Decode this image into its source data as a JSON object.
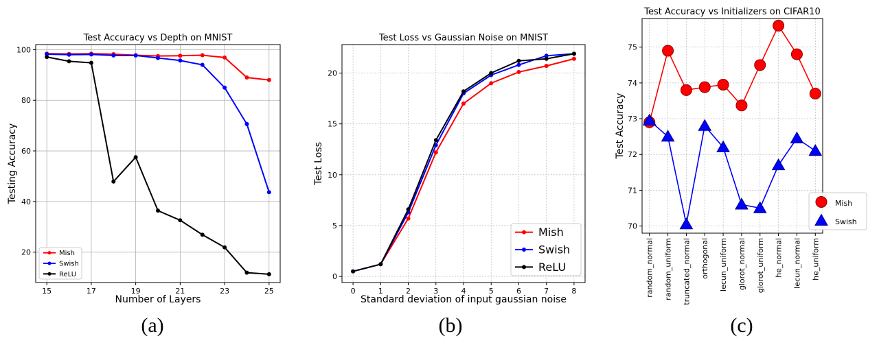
{
  "captions": [
    "(a)",
    "(b)",
    "(c)"
  ],
  "chart_data": [
    {
      "type": "line",
      "title": "Test Accuracy vs Depth on MNIST",
      "xlabel": "Number of Layers",
      "ylabel": "Testing Accuracy",
      "x": [
        15,
        16,
        17,
        18,
        19,
        20,
        21,
        22,
        23,
        24,
        25
      ],
      "xticks": [
        "15",
        "17",
        "19",
        "21",
        "23",
        "25"
      ],
      "yticks": [
        "20",
        "40",
        "60",
        "80",
        "100"
      ],
      "xlim": [
        14.5,
        25.5
      ],
      "ylim": [
        8,
        102
      ],
      "grid": true,
      "legend_position": "lower-left",
      "series": [
        {
          "name": "Mish",
          "color": "#ff0000",
          "values": [
            98.4,
            98.3,
            98.4,
            98.2,
            97.8,
            97.5,
            97.6,
            97.8,
            96.9,
            89.0,
            88.0
          ]
        },
        {
          "name": "Swish",
          "color": "#0000ff",
          "values": [
            98.2,
            98.0,
            98.1,
            97.7,
            97.7,
            96.7,
            95.7,
            94.0,
            85.0,
            70.6,
            43.7
          ]
        },
        {
          "name": "ReLU",
          "color": "#000000",
          "values": [
            97.1,
            95.4,
            94.8,
            47.9,
            57.5,
            36.4,
            32.6,
            26.9,
            21.9,
            11.9,
            11.3
          ]
        }
      ]
    },
    {
      "type": "line",
      "title": "Test Loss vs Gaussian Noise on MNIST",
      "xlabel": "Standard deviation of input gaussian noise",
      "ylabel": "Test Loss",
      "x": [
        0,
        1,
        2,
        3,
        4,
        5,
        6,
        7,
        8
      ],
      "xticks": [
        "0",
        "1",
        "2",
        "3",
        "4",
        "5",
        "6",
        "7",
        "8"
      ],
      "yticks": [
        "0",
        "5",
        "10",
        "15",
        "20"
      ],
      "xlim": [
        -0.4,
        8.4
      ],
      "ylim": [
        -0.6,
        22.8
      ],
      "grid": true,
      "legend_position": "lower-right",
      "series": [
        {
          "name": "Mish",
          "color": "#ff0000",
          "values": [
            0.5,
            1.2,
            5.7,
            12.2,
            17.0,
            19.0,
            20.1,
            20.7,
            21.4
          ]
        },
        {
          "name": "Swish",
          "color": "#0000ff",
          "values": [
            0.5,
            1.2,
            6.3,
            12.9,
            18.0,
            19.8,
            20.8,
            21.7,
            21.9
          ]
        },
        {
          "name": "ReLU",
          "color": "#000000",
          "values": [
            0.5,
            1.2,
            6.6,
            13.4,
            18.2,
            20.0,
            21.2,
            21.4,
            21.9
          ]
        }
      ]
    },
    {
      "type": "line",
      "title": "Test Accuracy vs Initializers on CIFAR10",
      "xlabel": "",
      "ylabel": "Test Accuracy",
      "categories": [
        "random_normal",
        "random_uniform",
        "truncated_normal",
        "orthogonal",
        "lecun_uniform",
        "glorot_normal",
        "glorot_uniform",
        "he_normal",
        "lecun_normal",
        "he_uniform"
      ],
      "yticks": [
        "70",
        "71",
        "72",
        "73",
        "74",
        "75"
      ],
      "ylim": [
        69.8,
        75.8
      ],
      "grid": true,
      "legend_position": "lower-right",
      "series": [
        {
          "name": "Mish",
          "color": "#ff0000",
          "marker": "circle",
          "values": [
            72.9,
            74.9,
            73.8,
            73.88,
            73.95,
            73.37,
            74.5,
            75.6,
            74.8,
            73.7
          ]
        },
        {
          "name": "Swish",
          "color": "#0000ff",
          "marker": "triangle",
          "values": [
            72.95,
            72.5,
            70.05,
            72.8,
            72.2,
            70.6,
            70.5,
            71.7,
            72.45,
            72.1
          ]
        }
      ]
    }
  ]
}
